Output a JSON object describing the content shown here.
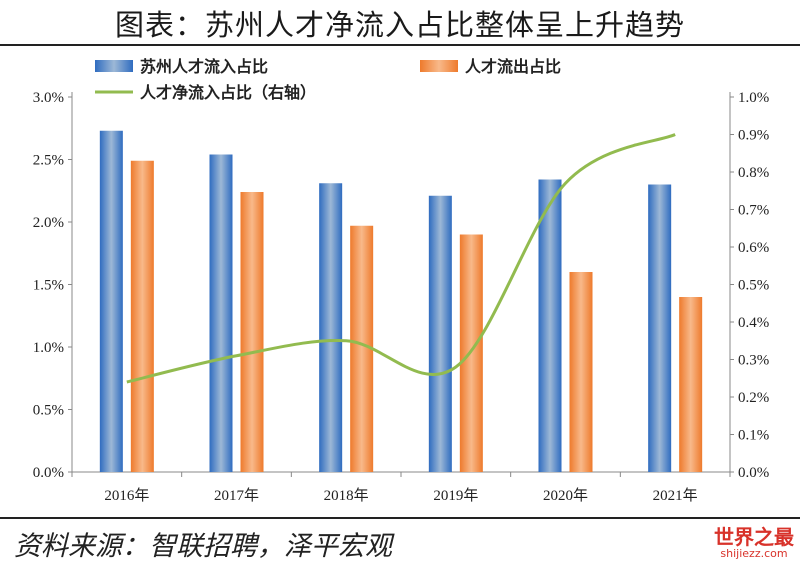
{
  "title": "图表：苏州人才净流入占比整体呈上升趋势",
  "source": "资料来源：智联招聘，泽平宏观",
  "watermark": {
    "name": "世界之最",
    "url": "shijiezz.com"
  },
  "chart_data": {
    "type": "bar+line",
    "title": "图表：苏州人才净流入占比整体呈上升趋势",
    "categories": [
      "2016年",
      "2017年",
      "2018年",
      "2019年",
      "2020年",
      "2021年"
    ],
    "series": [
      {
        "name": "苏州人才流入占比",
        "type": "bar",
        "axis": "left",
        "color": "#3b78c4",
        "values": [
          2.73,
          2.54,
          2.31,
          2.21,
          2.34,
          2.3
        ]
      },
      {
        "name": "人才流出占比",
        "type": "bar",
        "axis": "left",
        "color": "#f07f34",
        "values": [
          2.49,
          2.24,
          1.97,
          1.9,
          1.6,
          1.4
        ]
      },
      {
        "name": "人才净流入占比（右轴）",
        "type": "line",
        "axis": "right",
        "color": "#92bb4f",
        "values": [
          0.24,
          0.31,
          0.35,
          0.28,
          0.77,
          0.9
        ]
      }
    ],
    "y_left": {
      "ylim": [
        0,
        3.0
      ],
      "ticks": [
        "0.0%",
        "0.5%",
        "1.0%",
        "1.5%",
        "2.0%",
        "2.5%",
        "3.0%"
      ]
    },
    "y_right": {
      "ylim": [
        0,
        1.0
      ],
      "ticks": [
        "0.0%",
        "0.1%",
        "0.2%",
        "0.3%",
        "0.4%",
        "0.5%",
        "0.6%",
        "0.7%",
        "0.8%",
        "0.9%",
        "1.0%"
      ]
    },
    "legend": "top-left",
    "grid": false
  }
}
